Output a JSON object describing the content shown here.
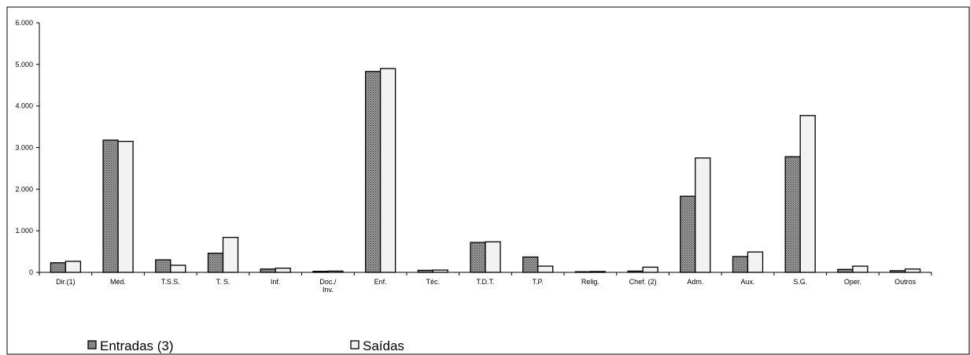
{
  "chart_data": {
    "type": "bar",
    "categories": [
      [
        "Dir.(1)"
      ],
      [
        "Méd."
      ],
      [
        "T.S.S."
      ],
      [
        "T. S."
      ],
      [
        "Inf."
      ],
      [
        "Doc./",
        "Inv."
      ],
      [
        "Enf."
      ],
      [
        "Téc."
      ],
      [
        "T.D.T."
      ],
      [
        "T.P."
      ],
      [
        "Relig."
      ],
      [
        "Chef. (2)"
      ],
      [
        "Adm."
      ],
      [
        "Aux."
      ],
      [
        "S.G."
      ],
      [
        "Oper."
      ],
      [
        "Outros"
      ]
    ],
    "series": [
      {
        "name": "Entradas (3)",
        "color": "#808080",
        "pattern": "dotted",
        "values": [
          230,
          3180,
          300,
          460,
          80,
          25,
          4830,
          50,
          720,
          370,
          15,
          30,
          1830,
          380,
          2780,
          70,
          40
        ]
      },
      {
        "name": "Saídas",
        "color": "#f2f2f2",
        "pattern": "solid",
        "values": [
          265,
          3150,
          170,
          840,
          100,
          30,
          4900,
          55,
          735,
          150,
          20,
          125,
          2750,
          490,
          3770,
          150,
          80
        ]
      }
    ],
    "ylim": [
      0,
      6000
    ],
    "yticks": [
      0,
      1000,
      2000,
      3000,
      4000,
      5000,
      6000
    ],
    "ytick_labels": [
      "0",
      "1.000",
      "2.000",
      "3.000",
      "4.000",
      "5.000",
      "6.000"
    ],
    "grid": false,
    "legend": "bottom-left"
  }
}
